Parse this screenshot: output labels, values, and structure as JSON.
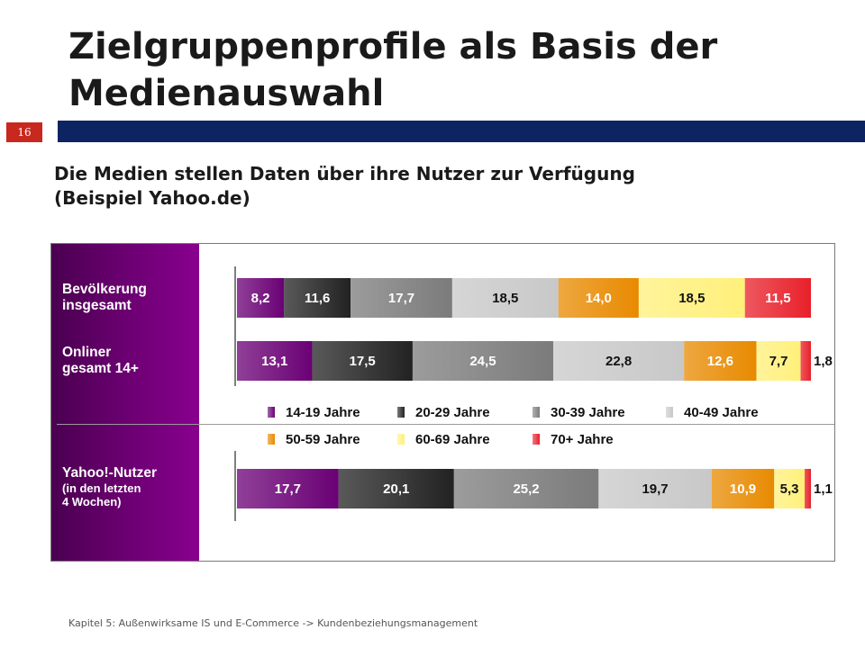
{
  "header": {
    "title_line1": "Zielgruppenprofile als Basis der",
    "title_line2": "Medienauswahl",
    "slide_number": "16"
  },
  "subtitle_line1": "Die Medien stellen Daten über ihre Nutzer zur Verfügung",
  "subtitle_line2": "(Beispiel Yahoo.de)",
  "footer": "Kapitel 5: Außenwirksame IS und E-Commerce -> Kundenbeziehungsmanagement",
  "colors": {
    "header_bar": "#0d2463",
    "slide_number_bg": "#c8281e",
    "row_panel": "#6e0074"
  },
  "chart_data": {
    "type": "bar",
    "orientation": "horizontal",
    "stacked": true,
    "categories": [
      "Bevölkerung insgesamt",
      "Onliner gesamt 14+",
      "Yahoo!-Nutzer (in den letzten 4 Wochen)"
    ],
    "category_labels": [
      {
        "line1": "Bevölkerung",
        "line2": "insgesamt"
      },
      {
        "line1": "Onliner",
        "line2": "gesamt 14+"
      },
      {
        "line1": "Yahoo!-Nutzer",
        "line2": "(in den letzten",
        "line3": "4 Wochen)"
      }
    ],
    "value_labels": [
      [
        "8,2",
        "11,6",
        "17,7",
        "18,5",
        "14,0",
        "18,5",
        "11,5"
      ],
      [
        "13,1",
        "17,5",
        "24,5",
        "22,8",
        "12,6",
        "7,7",
        "1,8"
      ],
      [
        "17,7",
        "20,1",
        "25,2",
        "19,7",
        "10,9",
        "5,3",
        "1,1"
      ]
    ],
    "series": [
      {
        "name": "14-19 Jahre",
        "values": [
          8.2,
          13.1,
          17.7
        ],
        "color": "#6a0075"
      },
      {
        "name": "20-29 Jahre",
        "values": [
          11.6,
          17.5,
          20.1
        ],
        "color": "#222222"
      },
      {
        "name": "30-39 Jahre",
        "values": [
          17.7,
          24.5,
          25.2
        ],
        "color": "#7b7b7b"
      },
      {
        "name": "40-49 Jahre",
        "values": [
          18.5,
          22.8,
          19.7
        ],
        "color": "#c8c8c8"
      },
      {
        "name": "50-59 Jahre",
        "values": [
          14.0,
          12.6,
          10.9
        ],
        "color": "#e88a00"
      },
      {
        "name": "60-69 Jahre",
        "values": [
          18.5,
          7.7,
          5.3
        ],
        "color": "#fff07a"
      },
      {
        "name": "70+ Jahre",
        "values": [
          11.5,
          1.8,
          1.1
        ],
        "color": "#e8202a"
      }
    ],
    "xlim": [
      0,
      100
    ],
    "axis_labels": false,
    "legend": "middle, two rows"
  }
}
